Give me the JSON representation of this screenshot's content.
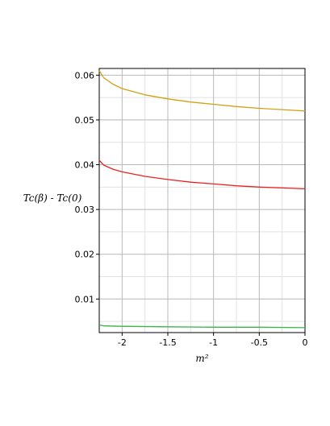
{
  "chart_data": {
    "type": "line",
    "xlabel": "m²",
    "ylabel": "Tc(β) - Tc(0)",
    "xlim": [
      -2.25,
      0
    ],
    "ylim": [
      0.0025,
      0.0615
    ],
    "x_ticks": [
      -2,
      -1.5,
      -1,
      -0.5,
      0
    ],
    "x_tick_labels": [
      "-2",
      "-1.5",
      "-1",
      "-0.5",
      "0"
    ],
    "y_ticks": [
      0.01,
      0.02,
      0.03,
      0.04,
      0.05,
      0.06
    ],
    "y_tick_labels": [
      "0.01",
      "0.02",
      "0.03",
      "0.04",
      "0.05",
      "0.06"
    ],
    "grid": true,
    "series": [
      {
        "color": "#d4a017",
        "x": [
          -2.25,
          -2.2,
          -2.1,
          -2.0,
          -1.75,
          -1.5,
          -1.25,
          -1.0,
          -0.75,
          -0.5,
          -0.25,
          0
        ],
        "y": [
          0.061,
          0.0594,
          0.058,
          0.057,
          0.0556,
          0.0547,
          0.054,
          0.0535,
          0.053,
          0.0526,
          0.0523,
          0.052
        ]
      },
      {
        "color": "#e8231f",
        "x": [
          -2.25,
          -2.2,
          -2.1,
          -2.0,
          -1.75,
          -1.5,
          -1.25,
          -1.0,
          -0.75,
          -0.5,
          -0.25,
          0
        ],
        "y": [
          0.041,
          0.0399,
          0.039,
          0.0384,
          0.0374,
          0.0367,
          0.0361,
          0.0357,
          0.0353,
          0.035,
          0.0348,
          0.0346
        ]
      },
      {
        "color": "#39b54a",
        "x": [
          -2.25,
          -2.2,
          -2.0,
          -1.5,
          -1.0,
          -0.5,
          0
        ],
        "y": [
          0.0042,
          0.004,
          0.0039,
          0.0038,
          0.0037,
          0.0037,
          0.0036
        ]
      }
    ]
  }
}
